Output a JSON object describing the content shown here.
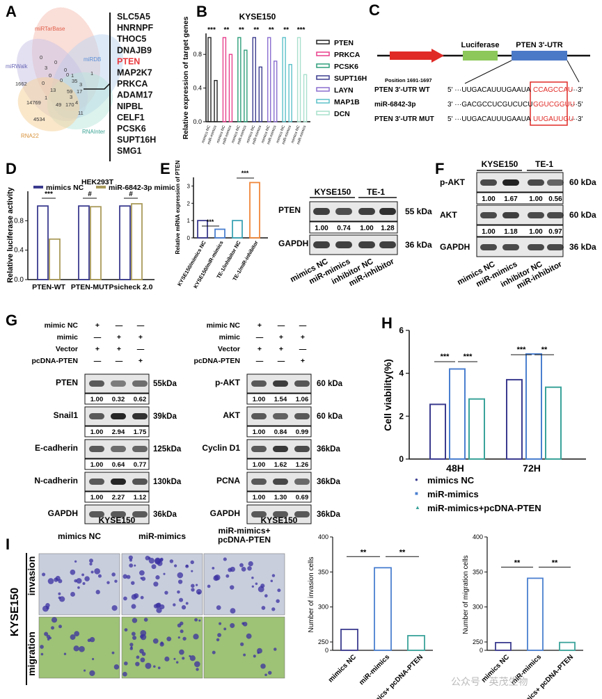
{
  "panel_labels": [
    "A",
    "B",
    "C",
    "D",
    "E",
    "F",
    "G",
    "H",
    "I"
  ],
  "panelA": {
    "databases": [
      "miRTarBase",
      "miRDB",
      "miRWalk",
      "RNAInter",
      "RNA22"
    ],
    "venn_numbers": [
      "1662",
      "0",
      "0",
      "3",
      "0",
      "0",
      "1",
      "1",
      "35",
      "0",
      "13",
      "59",
      "17",
      "14769",
      "49",
      "170",
      "4",
      "4534",
      "11",
      "1",
      "3",
      "0",
      "3",
      "0"
    ],
    "genes": [
      "SLC5A5",
      "HNRNPF",
      "THOC5",
      "DNAJB9",
      "PTEN",
      "MAP2K7",
      "PRKCA",
      "ADAM17",
      "NIPBL",
      "CELF1",
      "PCSK6",
      "SUPT16H",
      "SMG1"
    ],
    "highlight_color": "#e8383d"
  },
  "panelB": {
    "chart_data": {
      "type": "bar",
      "title": "KYSE150",
      "ylabel": "Relative expression of target genes",
      "ylim": [
        0,
        1.0
      ],
      "yticks": [
        "0.0",
        "0.4",
        "0.8"
      ],
      "groups": [
        "PTEN",
        "PRKCA",
        "PCSK6",
        "SUPT16H",
        "LAYN",
        "MAP1B",
        "DCN"
      ],
      "colors": [
        "#222222",
        "#e83e8c",
        "#2e9e7a",
        "#3b3b8f",
        "#8a6ecf",
        "#5bc0c9",
        "#a8e0cc"
      ],
      "series": [
        {
          "name": "mimics NC",
          "values": [
            1,
            1,
            1,
            1,
            1,
            1,
            1
          ]
        },
        {
          "name": "miR-mimics",
          "values": [
            0.49,
            0.8,
            0.85,
            0.65,
            0.72,
            0.68,
            0.56
          ]
        }
      ],
      "significance": [
        "***",
        "**",
        "**",
        "**",
        "**",
        "**",
        "***"
      ],
      "xlabels": [
        "mimics NC",
        "miR-mimics"
      ],
      "legend": [
        "PTEN",
        "PRKCA",
        "PCSK6",
        "SUPT16H",
        "LAYN",
        "MAP1B",
        "DCN"
      ]
    }
  },
  "panelC": {
    "luciferase": "Luciferase",
    "utr": "PTEN 3'-UTR",
    "position": "Position 1691-1697",
    "rows": [
      {
        "name": "PTEN 3'-UTR WT",
        "seq5": "5' ···UUGACAUUUGAAUA",
        "site": "CCAGCCAU",
        "seq3": "···3'"
      },
      {
        "name": "miR-6842-3p",
        "seq5": "3' ···GACGCCUCGUCUCU",
        "site": "GGUCGGUU",
        "seq3": "···5'"
      },
      {
        "name": "PTEN 3'-UTR MUT",
        "seq5": "5' ···UUGACAUUUGAAUA",
        "site": "UUGAUUGU",
        "seq3": "···3'"
      }
    ]
  },
  "panelD": {
    "chart_data": {
      "type": "bar",
      "title": "HEK293T",
      "ylabel": "Relative luciferase activity",
      "ylim": [
        0,
        1.2
      ],
      "yticks": [
        "0.0",
        "0.4",
        "0.8"
      ],
      "categories": [
        "PTEN-WT",
        "PTEN-MUT",
        "Psicheck 2.0"
      ],
      "series": [
        {
          "name": "mimics NC",
          "values": [
            1.0,
            1.0,
            1.0
          ],
          "color": "#3b3b8f"
        },
        {
          "name": "miR-6842-3p mimic",
          "values": [
            0.55,
            0.99,
            1.03
          ],
          "color": "#a99a5a"
        }
      ],
      "significance": [
        "***",
        "#",
        "#"
      ]
    }
  },
  "panelE": {
    "chart_data": {
      "type": "bar",
      "ylabel": "Relative mRNA expression of PTEN",
      "ylim": [
        0,
        3.5
      ],
      "yticks": [
        "0",
        "1",
        "2",
        "3"
      ],
      "categories": [
        "KYSE150/mimics NC",
        "KYSE150/miR-mimics",
        "TE-1/inhibitor NC",
        "TE-1/miR-inhibitor"
      ],
      "values": [
        1.0,
        0.5,
        1.0,
        3.2
      ],
      "colors": [
        "#3b3b8f",
        "#4a7fd0",
        "#3aa3b5",
        "#f0873b"
      ],
      "significance": [
        "***",
        "***"
      ]
    },
    "blot": {
      "cells": [
        "KYSE150",
        "TE-1"
      ],
      "rows": [
        {
          "label": "PTEN",
          "kda": "55 kDa",
          "values": [
            "1.00",
            "0.74",
            "1.00",
            "1.28"
          ]
        },
        {
          "label": "GAPDH",
          "kda": "36 kDa"
        }
      ],
      "lanes": [
        "mimics NC",
        "miR-mimics",
        "inhibitor NC",
        "miR-inhibitor"
      ]
    }
  },
  "panelF": {
    "cells": [
      "KYSE150",
      "TE-1"
    ],
    "rows": [
      {
        "label": "p-AKT",
        "kda": "60 kDa",
        "values": [
          "1.00",
          "1.67",
          "1.00",
          "0.56"
        ]
      },
      {
        "label": "AKT",
        "kda": "60 kDa",
        "values": [
          "1.00",
          "1.18",
          "1.00",
          "0.97"
        ]
      },
      {
        "label": "GAPDH",
        "kda": "36 kDa"
      }
    ],
    "lanes": [
      "mimics NC",
      "miR-mimics",
      "inhibitor NC",
      "miR-inhibitor"
    ]
  },
  "panelG": {
    "conditions": [
      "mimic NC",
      "mimic",
      "Vector",
      "pcDNA-PTEN"
    ],
    "signs": [
      [
        "+",
        "—",
        "—"
      ],
      [
        "—",
        "+",
        "+"
      ],
      [
        "+",
        "+",
        "—"
      ],
      [
        "—",
        "—",
        "+"
      ]
    ],
    "left": [
      {
        "label": "PTEN",
        "kda": "55kDa",
        "values": [
          "1.00",
          "0.32",
          "0.62"
        ]
      },
      {
        "label": "Snail1",
        "kda": "39kDa",
        "values": [
          "1.00",
          "2.94",
          "1.75"
        ]
      },
      {
        "label": "E-cadherin",
        "kda": "125kDa",
        "values": [
          "1.00",
          "0.64",
          "0.77"
        ]
      },
      {
        "label": "N-cadherin",
        "kda": "130kDa",
        "values": [
          "1.00",
          "2.27",
          "1.12"
        ]
      },
      {
        "label": "GAPDH",
        "kda": "36kDa"
      }
    ],
    "right": [
      {
        "label": "p-AKT",
        "kda": "60 kDa",
        "values": [
          "1.00",
          "1.54",
          "1.06"
        ]
      },
      {
        "label": "AKT",
        "kda": "60 kDa",
        "values": [
          "1.00",
          "0.84",
          "0.99"
        ]
      },
      {
        "label": "Cyclin D1",
        "kda": "36kDa",
        "values": [
          "1.00",
          "1.62",
          "1.26"
        ]
      },
      {
        "label": "PCNA",
        "kda": "36kDa",
        "values": [
          "1.00",
          "1.30",
          "0.69"
        ]
      },
      {
        "label": "GAPDH",
        "kda": "36kDa"
      }
    ],
    "cell": "KYSE150"
  },
  "panelH": {
    "chart_data": {
      "type": "bar",
      "ylabel": "Cell viability(%)",
      "ylim": [
        0,
        6
      ],
      "yticks": [
        "0",
        "2",
        "4",
        "6"
      ],
      "categories": [
        "48H",
        "72H"
      ],
      "series": [
        {
          "name": "mimics NC",
          "values": [
            2.55,
            3.7
          ],
          "color": "#3b3b8f"
        },
        {
          "name": "miR-mimics",
          "values": [
            4.2,
            4.9
          ],
          "color": "#4a7fd0"
        },
        {
          "name": "miR-mimics+pcDNA-PTEN",
          "values": [
            2.8,
            3.35
          ],
          "color": "#3aa39a"
        }
      ],
      "significance": [
        [
          "***",
          "***"
        ],
        [
          "***",
          "**"
        ]
      ]
    }
  },
  "panelI": {
    "columns": [
      "mimics NC",
      "miR-mimics",
      "miR-mimics+\npcDNA-PTEN"
    ],
    "cell": "KYSE150",
    "rows": [
      "invasion",
      "migration"
    ],
    "chart_invasion": {
      "type": "bar",
      "ylabel": "Number of invasion cells",
      "ylim": [
        0,
        400
      ],
      "yticks": [
        "0",
        "250",
        "300",
        "350",
        "400"
      ],
      "categories": [
        "mimics NC",
        "miR-mimics",
        "miR-mimics+ pcDNA-PTEN"
      ],
      "values": [
        268,
        356,
        259
      ],
      "significance": [
        "**",
        "**"
      ]
    },
    "chart_migration": {
      "type": "bar",
      "ylabel": "Number of migration cells",
      "ylim": [
        0,
        400
      ],
      "yticks": [
        "0",
        "250",
        "300",
        "350",
        "400"
      ],
      "categories": [
        "mimics NC",
        "miR-mimics",
        "miR-mimics+ pcDNA-PTEN"
      ],
      "values": [
        231,
        341,
        236
      ],
      "significance": [
        "**",
        "**"
      ]
    },
    "colors": [
      "#3b3b8f",
      "#4a7fd0",
      "#3aa39a"
    ]
  },
  "watermark": "公众号 · 英茂生物"
}
